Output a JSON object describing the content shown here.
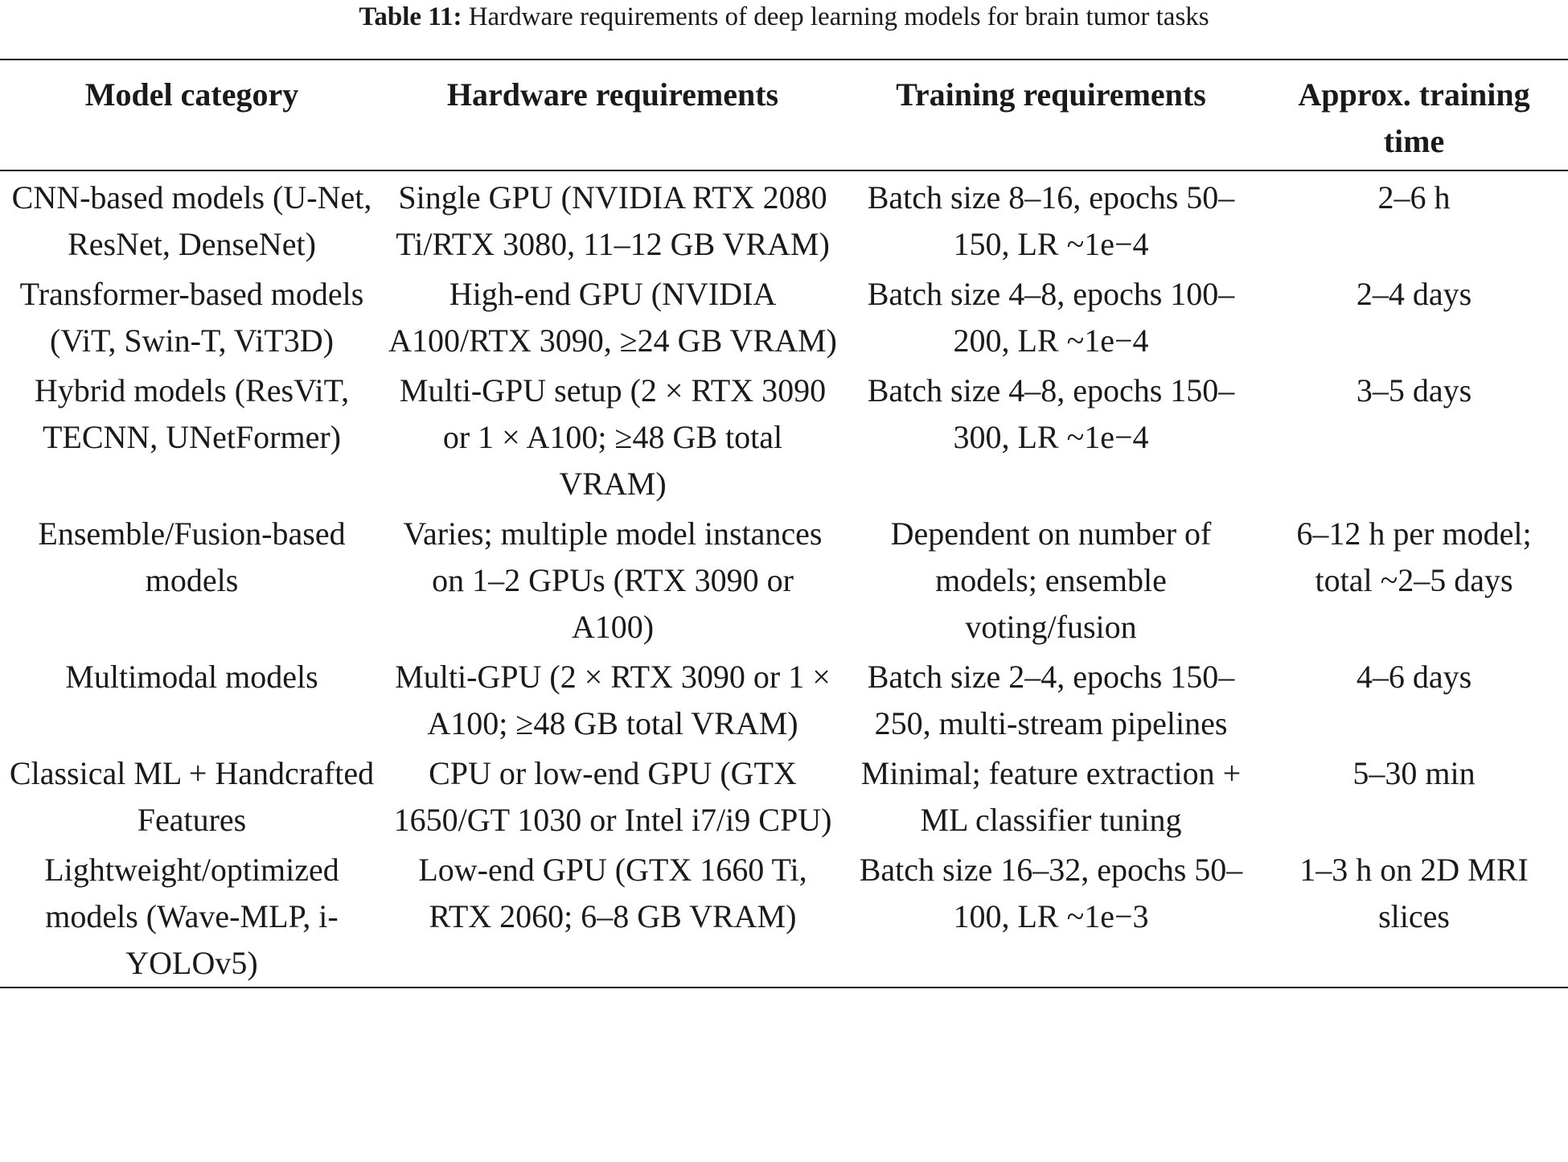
{
  "caption": {
    "label": "Table 11:",
    "text": "Hardware requirements of deep learning models for brain tumor tasks"
  },
  "columns": [
    "Model category",
    "Hardware requirements",
    "Training requirements",
    "Approx. training time"
  ],
  "rows": [
    [
      "CNN-based models (U-Net, ResNet, DenseNet)",
      "Single GPU (NVIDIA RTX 2080 Ti/RTX 3080, 11–12 GB VRAM)",
      "Batch size 8–16, epochs 50–150, LR ~1e−4",
      "2–6 h"
    ],
    [
      "Transformer-based models (ViT, Swin-T, ViT3D)",
      "High-end GPU (NVIDIA A100/RTX 3090, ≥24 GB VRAM)",
      "Batch size 4–8, epochs 100–200, LR ~1e−4",
      "2–4 days"
    ],
    [
      "Hybrid models (ResViT, TECNN, UNetFormer)",
      "Multi-GPU setup (2 × RTX 3090 or 1 × A100; ≥48 GB total VRAM)",
      "Batch size 4–8, epochs 150–300, LR ~1e−4",
      "3–5 days"
    ],
    [
      "Ensemble/Fusion-based models",
      "Varies; multiple model instances on 1–2 GPUs (RTX 3090 or A100)",
      "Dependent on number of models; ensemble voting/fusion",
      "6–12 h per model; total ~2–5 days"
    ],
    [
      "Multimodal models",
      "Multi-GPU (2 × RTX 3090 or 1 × A100; ≥48 GB total VRAM)",
      "Batch size 2–4, epochs 150–250, multi-stream pipelines",
      "4–6 days"
    ],
    [
      "Classical ML + Handcrafted Features",
      "CPU or low-end GPU (GTX 1650/GT 1030 or Intel i7/i9 CPU)",
      "Minimal; feature extraction + ML classifier tuning",
      "5–30 min"
    ],
    [
      "Lightweight/optimized models (Wave-MLP, i-YOLOv5)",
      "Low-end GPU (GTX 1660 Ti, RTX 2060; 6–8 GB VRAM)",
      "Batch size 16–32, epochs 50–100, LR ~1e−3",
      "1–3 h on 2D MRI slices"
    ]
  ]
}
